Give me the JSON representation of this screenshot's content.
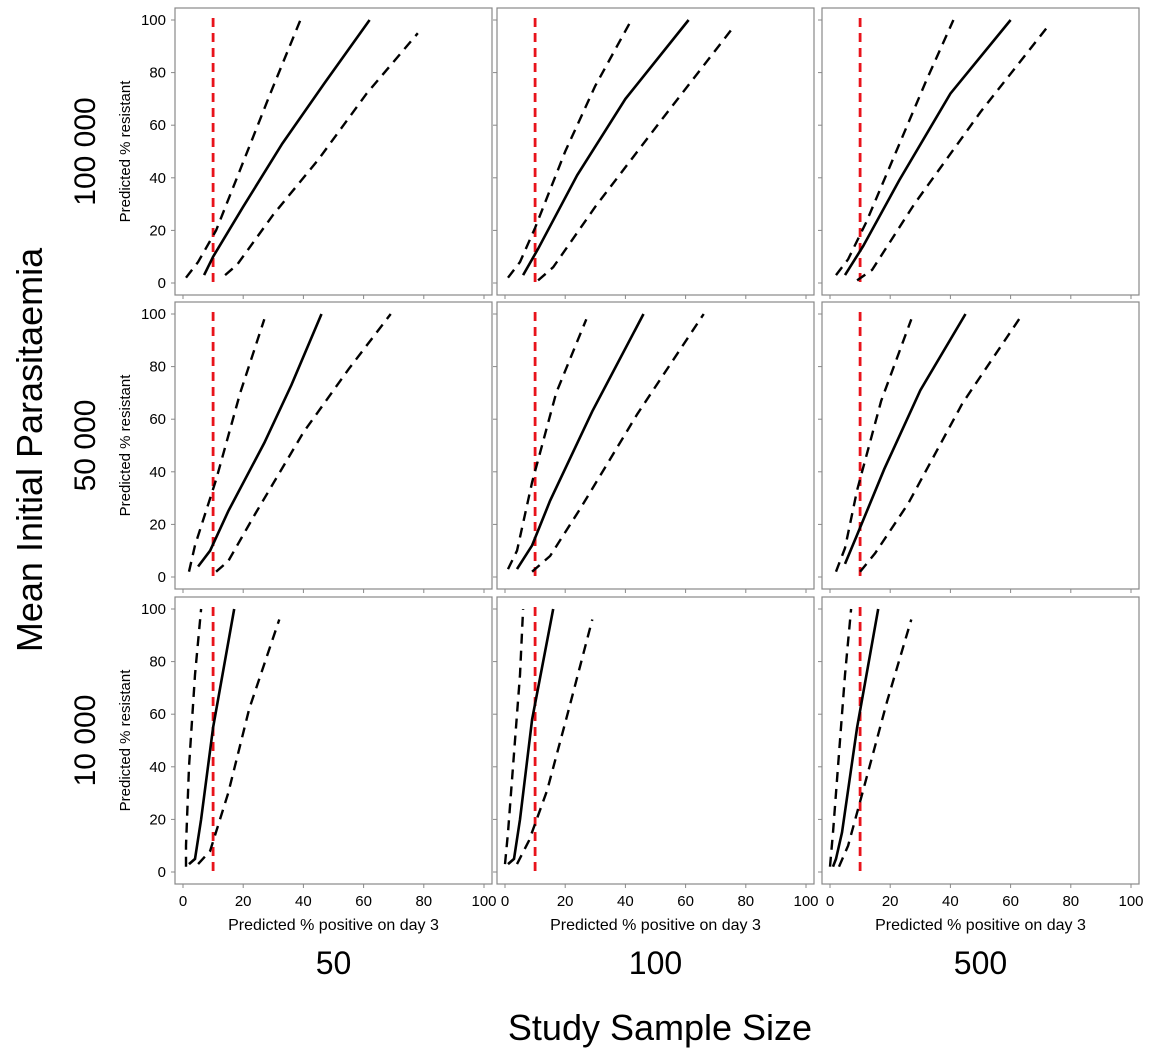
{
  "figure": {
    "outer_ylabel": "Mean Initial Parasitaemia",
    "outer_xlabel": "Study Sample Size",
    "row_labels": [
      "100 000",
      "50 000",
      "10 000"
    ],
    "col_labels": [
      "50",
      "100",
      "500"
    ]
  },
  "chart_data": {
    "type": "line",
    "layout": "3x3 facet grid",
    "xlabel": "Predicted % positive on day 3",
    "ylabel": "Predicted % resistant",
    "xlim": [
      0,
      100
    ],
    "ylim": [
      0,
      100
    ],
    "xticks": [
      0,
      20,
      40,
      60,
      80,
      100
    ],
    "yticks": [
      0,
      20,
      40,
      60,
      80,
      100
    ],
    "grid": false,
    "reference_line": {
      "x": 10,
      "color": "#e8131b",
      "style": "dashed"
    },
    "line_color": "#000000",
    "panels": [
      {
        "row": "100 000",
        "col": "50",
        "estimate": [
          [
            7,
            3
          ],
          [
            10,
            10
          ],
          [
            20,
            29
          ],
          [
            33,
            53
          ],
          [
            47,
            76
          ],
          [
            62,
            100
          ]
        ],
        "lower": [
          [
            14,
            3
          ],
          [
            18,
            7
          ],
          [
            30,
            26
          ],
          [
            45,
            47
          ],
          [
            61,
            72
          ],
          [
            78,
            95
          ]
        ],
        "upper": [
          [
            1,
            2
          ],
          [
            5,
            8
          ],
          [
            11,
            20
          ],
          [
            20,
            46
          ],
          [
            29,
            72
          ],
          [
            39,
            100
          ]
        ]
      },
      {
        "row": "100 000",
        "col": "100",
        "estimate": [
          [
            6,
            3
          ],
          [
            11,
            13
          ],
          [
            24,
            41
          ],
          [
            40,
            70
          ],
          [
            61,
            100
          ]
        ],
        "lower": [
          [
            11,
            1
          ],
          [
            16,
            6
          ],
          [
            30,
            29
          ],
          [
            52,
            62
          ],
          [
            75,
            96
          ]
        ],
        "upper": [
          [
            1,
            2
          ],
          [
            5,
            8
          ],
          [
            10,
            21
          ],
          [
            20,
            50
          ],
          [
            30,
            75
          ],
          [
            42,
            100
          ]
        ]
      },
      {
        "row": "100 000",
        "col": "500",
        "estimate": [
          [
            5,
            3
          ],
          [
            11,
            14
          ],
          [
            23,
            39
          ],
          [
            40,
            72
          ],
          [
            60,
            100
          ]
        ],
        "lower": [
          [
            9,
            1
          ],
          [
            14,
            5
          ],
          [
            28,
            30
          ],
          [
            50,
            65
          ],
          [
            72,
            97
          ]
        ],
        "upper": [
          [
            2,
            3
          ],
          [
            6,
            9
          ],
          [
            12,
            23
          ],
          [
            22,
            50
          ],
          [
            32,
            77
          ],
          [
            41,
            100
          ]
        ]
      },
      {
        "row": "50 000",
        "col": "50",
        "estimate": [
          [
            5,
            4
          ],
          [
            9,
            10
          ],
          [
            15,
            25
          ],
          [
            27,
            51
          ],
          [
            36,
            73
          ],
          [
            46,
            100
          ]
        ],
        "lower": [
          [
            11,
            2
          ],
          [
            15,
            6
          ],
          [
            24,
            24
          ],
          [
            40,
            55
          ],
          [
            55,
            79
          ],
          [
            69,
            100
          ]
        ],
        "upper": [
          [
            2,
            2
          ],
          [
            4,
            12
          ],
          [
            11,
            37
          ],
          [
            19,
            70
          ],
          [
            27,
            98
          ]
        ]
      },
      {
        "row": "50 000",
        "col": "100",
        "estimate": [
          [
            4,
            3
          ],
          [
            9,
            12
          ],
          [
            15,
            29
          ],
          [
            29,
            63
          ],
          [
            46,
            100
          ]
        ],
        "lower": [
          [
            9,
            2
          ],
          [
            15,
            8
          ],
          [
            25,
            26
          ],
          [
            44,
            62
          ],
          [
            66,
            100
          ]
        ],
        "upper": [
          [
            1,
            3
          ],
          [
            4,
            10
          ],
          [
            9,
            36
          ],
          [
            17,
            70
          ],
          [
            27,
            98
          ]
        ]
      },
      {
        "row": "50 000",
        "col": "500",
        "estimate": [
          [
            5,
            5
          ],
          [
            9,
            16
          ],
          [
            18,
            41
          ],
          [
            30,
            71
          ],
          [
            45,
            100
          ]
        ],
        "lower": [
          [
            10,
            2
          ],
          [
            15,
            9
          ],
          [
            26,
            28
          ],
          [
            44,
            66
          ],
          [
            64,
            100
          ]
        ],
        "upper": [
          [
            2,
            2
          ],
          [
            5,
            11
          ],
          [
            9,
            33
          ],
          [
            17,
            67
          ],
          [
            27,
            98
          ]
        ]
      },
      {
        "row": "10 000",
        "col": "50",
        "estimate": [
          [
            2,
            3
          ],
          [
            4,
            5
          ],
          [
            6,
            20
          ],
          [
            10,
            55
          ],
          [
            17,
            100
          ]
        ],
        "lower": [
          [
            5,
            3
          ],
          [
            9,
            8
          ],
          [
            15,
            30
          ],
          [
            22,
            62
          ],
          [
            32,
            96
          ]
        ],
        "upper": [
          [
            1,
            2
          ],
          [
            1,
            10
          ],
          [
            2,
            40
          ],
          [
            4,
            75
          ],
          [
            6,
            100
          ]
        ]
      },
      {
        "row": "10 000",
        "col": "100",
        "estimate": [
          [
            1,
            3
          ],
          [
            3,
            5
          ],
          [
            5,
            20
          ],
          [
            9,
            58
          ],
          [
            16,
            100
          ]
        ],
        "lower": [
          [
            4,
            3
          ],
          [
            8,
            12
          ],
          [
            14,
            31
          ],
          [
            21,
            61
          ],
          [
            29,
            96
          ]
        ],
        "upper": [
          [
            0,
            3
          ],
          [
            1,
            15
          ],
          [
            3,
            45
          ],
          [
            5,
            75
          ],
          [
            6,
            100
          ]
        ]
      },
      {
        "row": "10 000",
        "col": "500",
        "estimate": [
          [
            1,
            2
          ],
          [
            2,
            5
          ],
          [
            4,
            15
          ],
          [
            9,
            55
          ],
          [
            16,
            100
          ]
        ],
        "lower": [
          [
            3,
            2
          ],
          [
            6,
            10
          ],
          [
            11,
            31
          ],
          [
            19,
            65
          ],
          [
            27,
            96
          ]
        ],
        "upper": [
          [
            0,
            2
          ],
          [
            1,
            15
          ],
          [
            3,
            45
          ],
          [
            5,
            75
          ],
          [
            7,
            100
          ]
        ]
      }
    ]
  }
}
